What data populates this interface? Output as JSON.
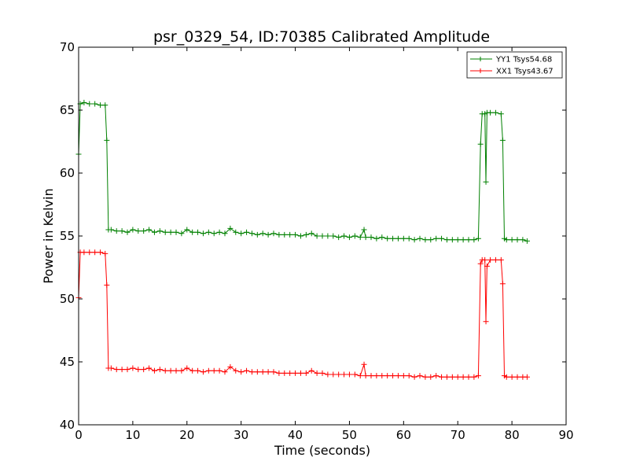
{
  "chart_data": {
    "type": "line",
    "title": "psr_0329_54, ID:70385 Calibrated Amplitude",
    "xlabel": "Time (seconds)",
    "ylabel": "Power in Kelvin",
    "xlim": [
      0,
      90
    ],
    "ylim": [
      40,
      70
    ],
    "xticks": [
      0,
      10,
      20,
      30,
      40,
      50,
      60,
      70,
      80,
      90
    ],
    "yticks": [
      40,
      45,
      50,
      55,
      60,
      65,
      70
    ],
    "grid": false,
    "legend_position": "top-right",
    "marker": "+",
    "series": [
      {
        "name": "YY1 Tsys54.68",
        "color": "#008000",
        "points": [
          [
            0.0,
            61.5
          ],
          [
            0.3,
            65.5
          ],
          [
            1,
            65.6
          ],
          [
            2,
            65.5
          ],
          [
            3,
            65.5
          ],
          [
            4,
            65.4
          ],
          [
            4.9,
            65.4
          ],
          [
            5.2,
            62.6
          ],
          [
            5.5,
            55.5
          ],
          [
            6,
            55.5
          ],
          [
            7,
            55.4
          ],
          [
            8,
            55.4
          ],
          [
            9,
            55.3
          ],
          [
            10,
            55.5
          ],
          [
            11,
            55.4
          ],
          [
            12,
            55.4
          ],
          [
            13,
            55.5
          ],
          [
            14,
            55.3
          ],
          [
            15,
            55.4
          ],
          [
            16,
            55.3
          ],
          [
            17,
            55.3
          ],
          [
            18,
            55.3
          ],
          [
            19,
            55.2
          ],
          [
            20,
            55.5
          ],
          [
            21,
            55.3
          ],
          [
            22,
            55.3
          ],
          [
            23,
            55.2
          ],
          [
            24,
            55.3
          ],
          [
            25,
            55.2
          ],
          [
            26,
            55.3
          ],
          [
            27,
            55.2
          ],
          [
            28,
            55.6
          ],
          [
            29,
            55.3
          ],
          [
            30,
            55.2
          ],
          [
            31,
            55.3
          ],
          [
            32,
            55.2
          ],
          [
            33,
            55.1
          ],
          [
            34,
            55.2
          ],
          [
            35,
            55.1
          ],
          [
            36,
            55.2
          ],
          [
            37,
            55.1
          ],
          [
            38,
            55.1
          ],
          [
            39,
            55.1
          ],
          [
            40,
            55.1
          ],
          [
            41,
            55.0
          ],
          [
            42,
            55.1
          ],
          [
            43,
            55.2
          ],
          [
            44,
            55.0
          ],
          [
            45,
            55.0
          ],
          [
            46,
            55.0
          ],
          [
            47,
            55.0
          ],
          [
            48,
            54.9
          ],
          [
            49,
            55.0
          ],
          [
            50,
            54.9
          ],
          [
            51,
            55.0
          ],
          [
            52,
            54.9
          ],
          [
            52.7,
            55.5
          ],
          [
            53,
            54.9
          ],
          [
            54,
            54.9
          ],
          [
            55,
            54.8
          ],
          [
            56,
            54.9
          ],
          [
            57,
            54.8
          ],
          [
            58,
            54.8
          ],
          [
            59,
            54.8
          ],
          [
            60,
            54.8
          ],
          [
            61,
            54.8
          ],
          [
            62,
            54.7
          ],
          [
            63,
            54.8
          ],
          [
            64,
            54.7
          ],
          [
            65,
            54.7
          ],
          [
            66,
            54.8
          ],
          [
            67,
            54.8
          ],
          [
            68,
            54.7
          ],
          [
            69,
            54.7
          ],
          [
            70,
            54.7
          ],
          [
            71,
            54.7
          ],
          [
            72,
            54.7
          ],
          [
            73,
            54.7
          ],
          [
            73.8,
            54.8
          ],
          [
            74.2,
            62.3
          ],
          [
            74.5,
            64.7
          ],
          [
            75.0,
            64.7
          ],
          [
            75.2,
            59.3
          ],
          [
            75.4,
            64.8
          ],
          [
            76,
            64.8
          ],
          [
            77,
            64.8
          ],
          [
            78,
            64.7
          ],
          [
            78.3,
            62.6
          ],
          [
            78.6,
            54.8
          ],
          [
            79,
            54.7
          ],
          [
            80,
            54.7
          ],
          [
            81,
            54.7
          ],
          [
            82,
            54.7
          ],
          [
            82.8,
            54.6
          ]
        ]
      },
      {
        "name": "XX1 Tsys43.67",
        "color": "#ff0000",
        "points": [
          [
            0.0,
            50.1
          ],
          [
            0.3,
            53.7
          ],
          [
            1,
            53.7
          ],
          [
            2,
            53.7
          ],
          [
            3,
            53.7
          ],
          [
            4,
            53.7
          ],
          [
            4.9,
            53.6
          ],
          [
            5.2,
            51.1
          ],
          [
            5.5,
            44.5
          ],
          [
            6,
            44.5
          ],
          [
            7,
            44.4
          ],
          [
            8,
            44.4
          ],
          [
            9,
            44.4
          ],
          [
            10,
            44.5
          ],
          [
            11,
            44.4
          ],
          [
            12,
            44.4
          ],
          [
            13,
            44.5
          ],
          [
            14,
            44.3
          ],
          [
            15,
            44.4
          ],
          [
            16,
            44.3
          ],
          [
            17,
            44.3
          ],
          [
            18,
            44.3
          ],
          [
            19,
            44.3
          ],
          [
            20,
            44.5
          ],
          [
            21,
            44.3
          ],
          [
            22,
            44.3
          ],
          [
            23,
            44.2
          ],
          [
            24,
            44.3
          ],
          [
            25,
            44.3
          ],
          [
            26,
            44.3
          ],
          [
            27,
            44.2
          ],
          [
            28,
            44.6
          ],
          [
            29,
            44.3
          ],
          [
            30,
            44.2
          ],
          [
            31,
            44.3
          ],
          [
            32,
            44.2
          ],
          [
            33,
            44.2
          ],
          [
            34,
            44.2
          ],
          [
            35,
            44.2
          ],
          [
            36,
            44.2
          ],
          [
            37,
            44.1
          ],
          [
            38,
            44.1
          ],
          [
            39,
            44.1
          ],
          [
            40,
            44.1
          ],
          [
            41,
            44.1
          ],
          [
            42,
            44.1
          ],
          [
            43,
            44.3
          ],
          [
            44,
            44.1
          ],
          [
            45,
            44.1
          ],
          [
            46,
            44.0
          ],
          [
            47,
            44.0
          ],
          [
            48,
            44.0
          ],
          [
            49,
            44.0
          ],
          [
            50,
            44.0
          ],
          [
            51,
            44.0
          ],
          [
            52,
            43.9
          ],
          [
            52.7,
            44.8
          ],
          [
            53,
            43.9
          ],
          [
            54,
            43.9
          ],
          [
            55,
            43.9
          ],
          [
            56,
            43.9
          ],
          [
            57,
            43.9
          ],
          [
            58,
            43.9
          ],
          [
            59,
            43.9
          ],
          [
            60,
            43.9
          ],
          [
            61,
            43.9
          ],
          [
            62,
            43.8
          ],
          [
            63,
            43.9
          ],
          [
            64,
            43.8
          ],
          [
            65,
            43.8
          ],
          [
            66,
            43.9
          ],
          [
            67,
            43.8
          ],
          [
            68,
            43.8
          ],
          [
            69,
            43.8
          ],
          [
            70,
            43.8
          ],
          [
            71,
            43.8
          ],
          [
            72,
            43.8
          ],
          [
            73,
            43.8
          ],
          [
            73.8,
            43.9
          ],
          [
            74.2,
            52.8
          ],
          [
            74.5,
            53.1
          ],
          [
            75.0,
            53.1
          ],
          [
            75.2,
            48.2
          ],
          [
            75.4,
            52.6
          ],
          [
            76,
            53.1
          ],
          [
            77,
            53.1
          ],
          [
            78,
            53.1
          ],
          [
            78.3,
            51.2
          ],
          [
            78.6,
            43.9
          ],
          [
            79,
            43.8
          ],
          [
            80,
            43.8
          ],
          [
            81,
            43.8
          ],
          [
            82,
            43.8
          ],
          [
            82.8,
            43.8
          ]
        ]
      }
    ]
  }
}
